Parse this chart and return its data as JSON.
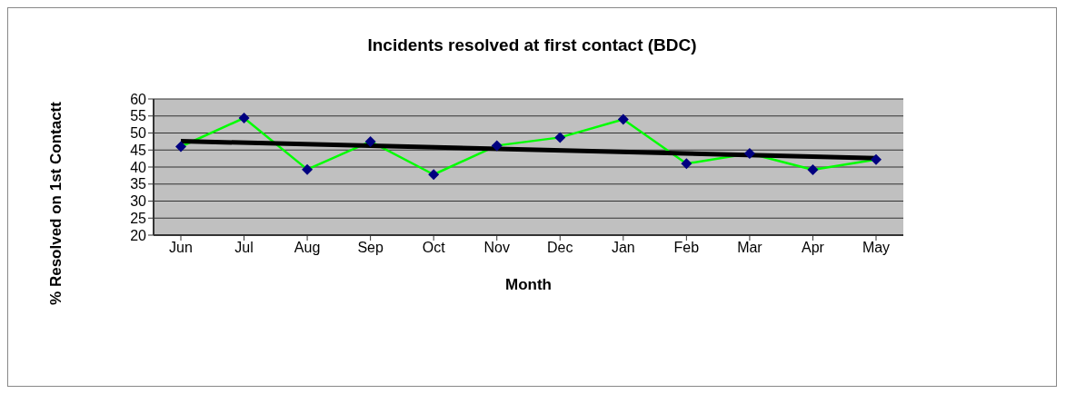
{
  "chart_data": {
    "type": "line",
    "title": "Incidents resolved at first contact (BDC)",
    "xlabel": "Month",
    "ylabel": "% Resolved on 1st Contactt",
    "categories": [
      "Jun",
      "Jul",
      "Aug",
      "Sep",
      "Oct",
      "Nov",
      "Dec",
      "Jan",
      "Feb",
      "Mar",
      "Apr",
      "May"
    ],
    "series": [
      {
        "color": "#00ff00",
        "marker": "diamond",
        "values": [
          46,
          54.4,
          39.3,
          47.5,
          37.8,
          46.3,
          48.7,
          54,
          41,
          44,
          39.2,
          42.2
        ]
      },
      {
        "type": "line",
        "color": "#000000",
        "marker": "none",
        "values": [
          47.6,
          null,
          null,
          null,
          null,
          null,
          null,
          null,
          null,
          null,
          null,
          42.6
        ]
      }
    ],
    "ylim": [
      20,
      60
    ],
    "yticks": [
      20,
      25,
      30,
      35,
      40,
      45,
      50,
      55,
      60
    ],
    "grid": "y"
  }
}
